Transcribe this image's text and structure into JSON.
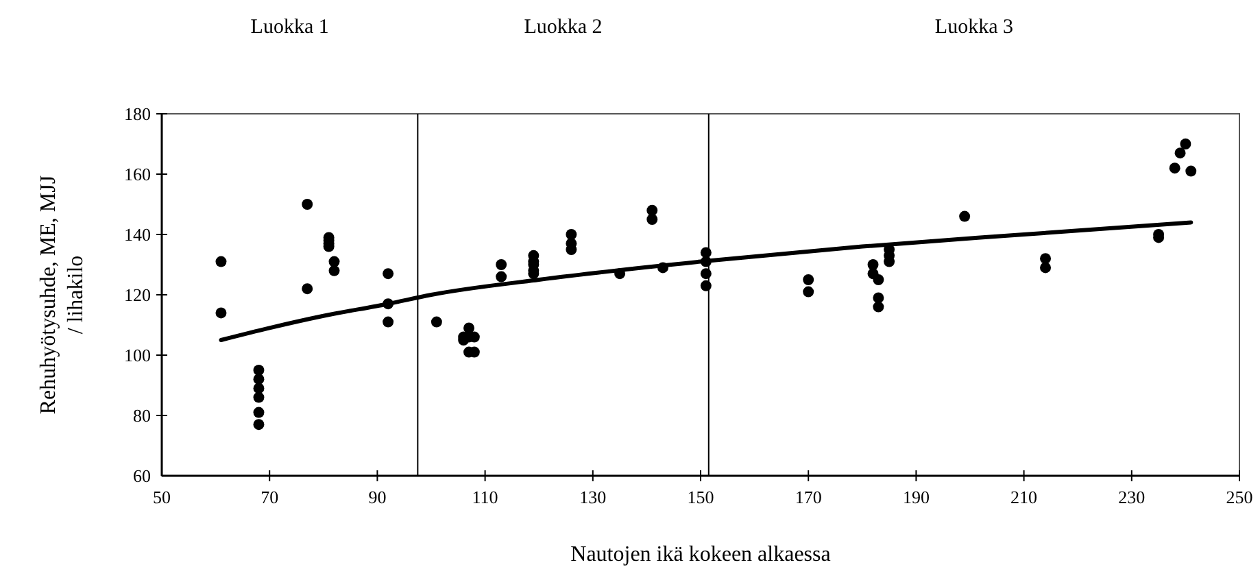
{
  "chart_data": {
    "type": "scatter",
    "xlabel": "Nautojen ikä kokeen alkaessa",
    "ylabel": "Rehuhyötysuhde, ME, MJJ / lihakilo",
    "xlim": [
      50,
      250
    ],
    "xticks": [
      50,
      70,
      90,
      110,
      130,
      150,
      170,
      190,
      210,
      230,
      250
    ],
    "ylim": [
      60,
      180
    ],
    "yticks": [
      60,
      80,
      100,
      120,
      140,
      160,
      180
    ],
    "grid": false,
    "marker": "circle",
    "annotations": [
      "Luokka 1",
      "Luokka 2",
      "Luokka 3"
    ],
    "ref_lines": [
      {
        "axis": "x",
        "value": 97.5,
        "color": "#000000"
      },
      {
        "axis": "x",
        "value": 151.5,
        "color": "#000000"
      }
    ],
    "series": [
      {
        "color": "#000000",
        "x": [
          61,
          61,
          68,
          68,
          68,
          68,
          68,
          68,
          77,
          77,
          81,
          81,
          81,
          81,
          82,
          82,
          92,
          92,
          92,
          101,
          106,
          106,
          107,
          107,
          107,
          108,
          108,
          113,
          113,
          119,
          119,
          119,
          119,
          119,
          126,
          126,
          126,
          135,
          141,
          141,
          143,
          151,
          151,
          151,
          151,
          170,
          170,
          182,
          182,
          183,
          183,
          183,
          185,
          185,
          185,
          199,
          214,
          214,
          235,
          235,
          238,
          239,
          240,
          241
        ],
        "values": [
          131,
          114,
          95,
          92,
          89,
          86,
          81,
          77,
          150,
          122,
          139,
          138,
          137,
          136,
          131,
          128,
          127,
          117,
          111,
          111,
          106,
          105,
          109,
          106,
          101,
          101,
          106,
          130,
          126,
          133,
          131,
          130,
          128,
          127,
          140,
          137,
          135,
          127,
          148,
          145,
          129,
          134,
          131,
          127,
          123,
          125,
          121,
          130,
          127,
          125,
          119,
          116,
          135,
          133,
          131,
          146,
          132,
          129,
          140,
          139,
          162,
          167,
          170,
          161
        ]
      },
      {
        "type": "line",
        "marker": "none",
        "color": "#000000",
        "x": [
          61,
          70,
          80,
          92,
          100,
          120,
          150,
          180,
          210,
          241
        ],
        "values": [
          105,
          109,
          113,
          117,
          120,
          125,
          131,
          136,
          140,
          144
        ]
      }
    ]
  }
}
